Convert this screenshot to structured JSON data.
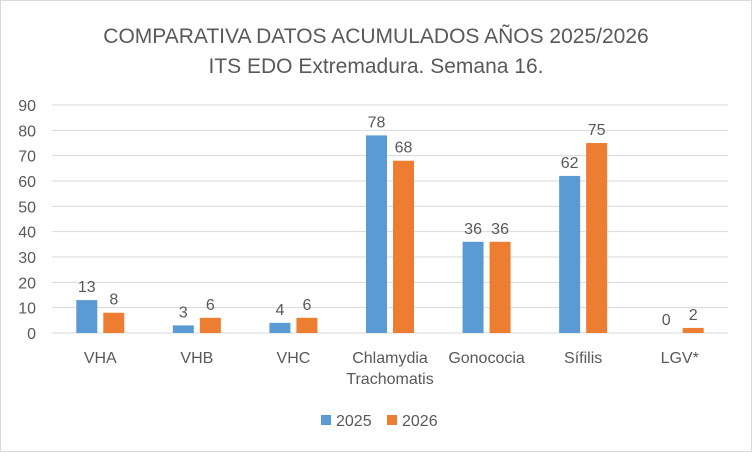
{
  "chart_data": {
    "type": "bar",
    "title": "COMPARATIVA DATOS ACUMULADOS AÑOS 2025/2026",
    "subtitle": "ITS EDO Extremadura. Semana 16.",
    "categories": [
      [
        "VHA"
      ],
      [
        "VHB"
      ],
      [
        "VHC"
      ],
      [
        "Chlamydia",
        "Trachomatis"
      ],
      [
        "Gonococia"
      ],
      [
        "Sífilis"
      ],
      [
        "LGV*"
      ]
    ],
    "series": [
      {
        "name": "2025",
        "color": "#5B9BD5",
        "values": [
          13,
          3,
          4,
          78,
          36,
          62,
          0
        ]
      },
      {
        "name": "2026",
        "color": "#ED7D31",
        "values": [
          8,
          6,
          6,
          68,
          36,
          75,
          2
        ]
      }
    ],
    "ylim": [
      0,
      90
    ],
    "yticks": [
      0,
      10,
      20,
      30,
      40,
      50,
      60,
      70,
      80,
      90
    ],
    "grid": true,
    "legend": "bottom",
    "xlabel": "",
    "ylabel": ""
  }
}
